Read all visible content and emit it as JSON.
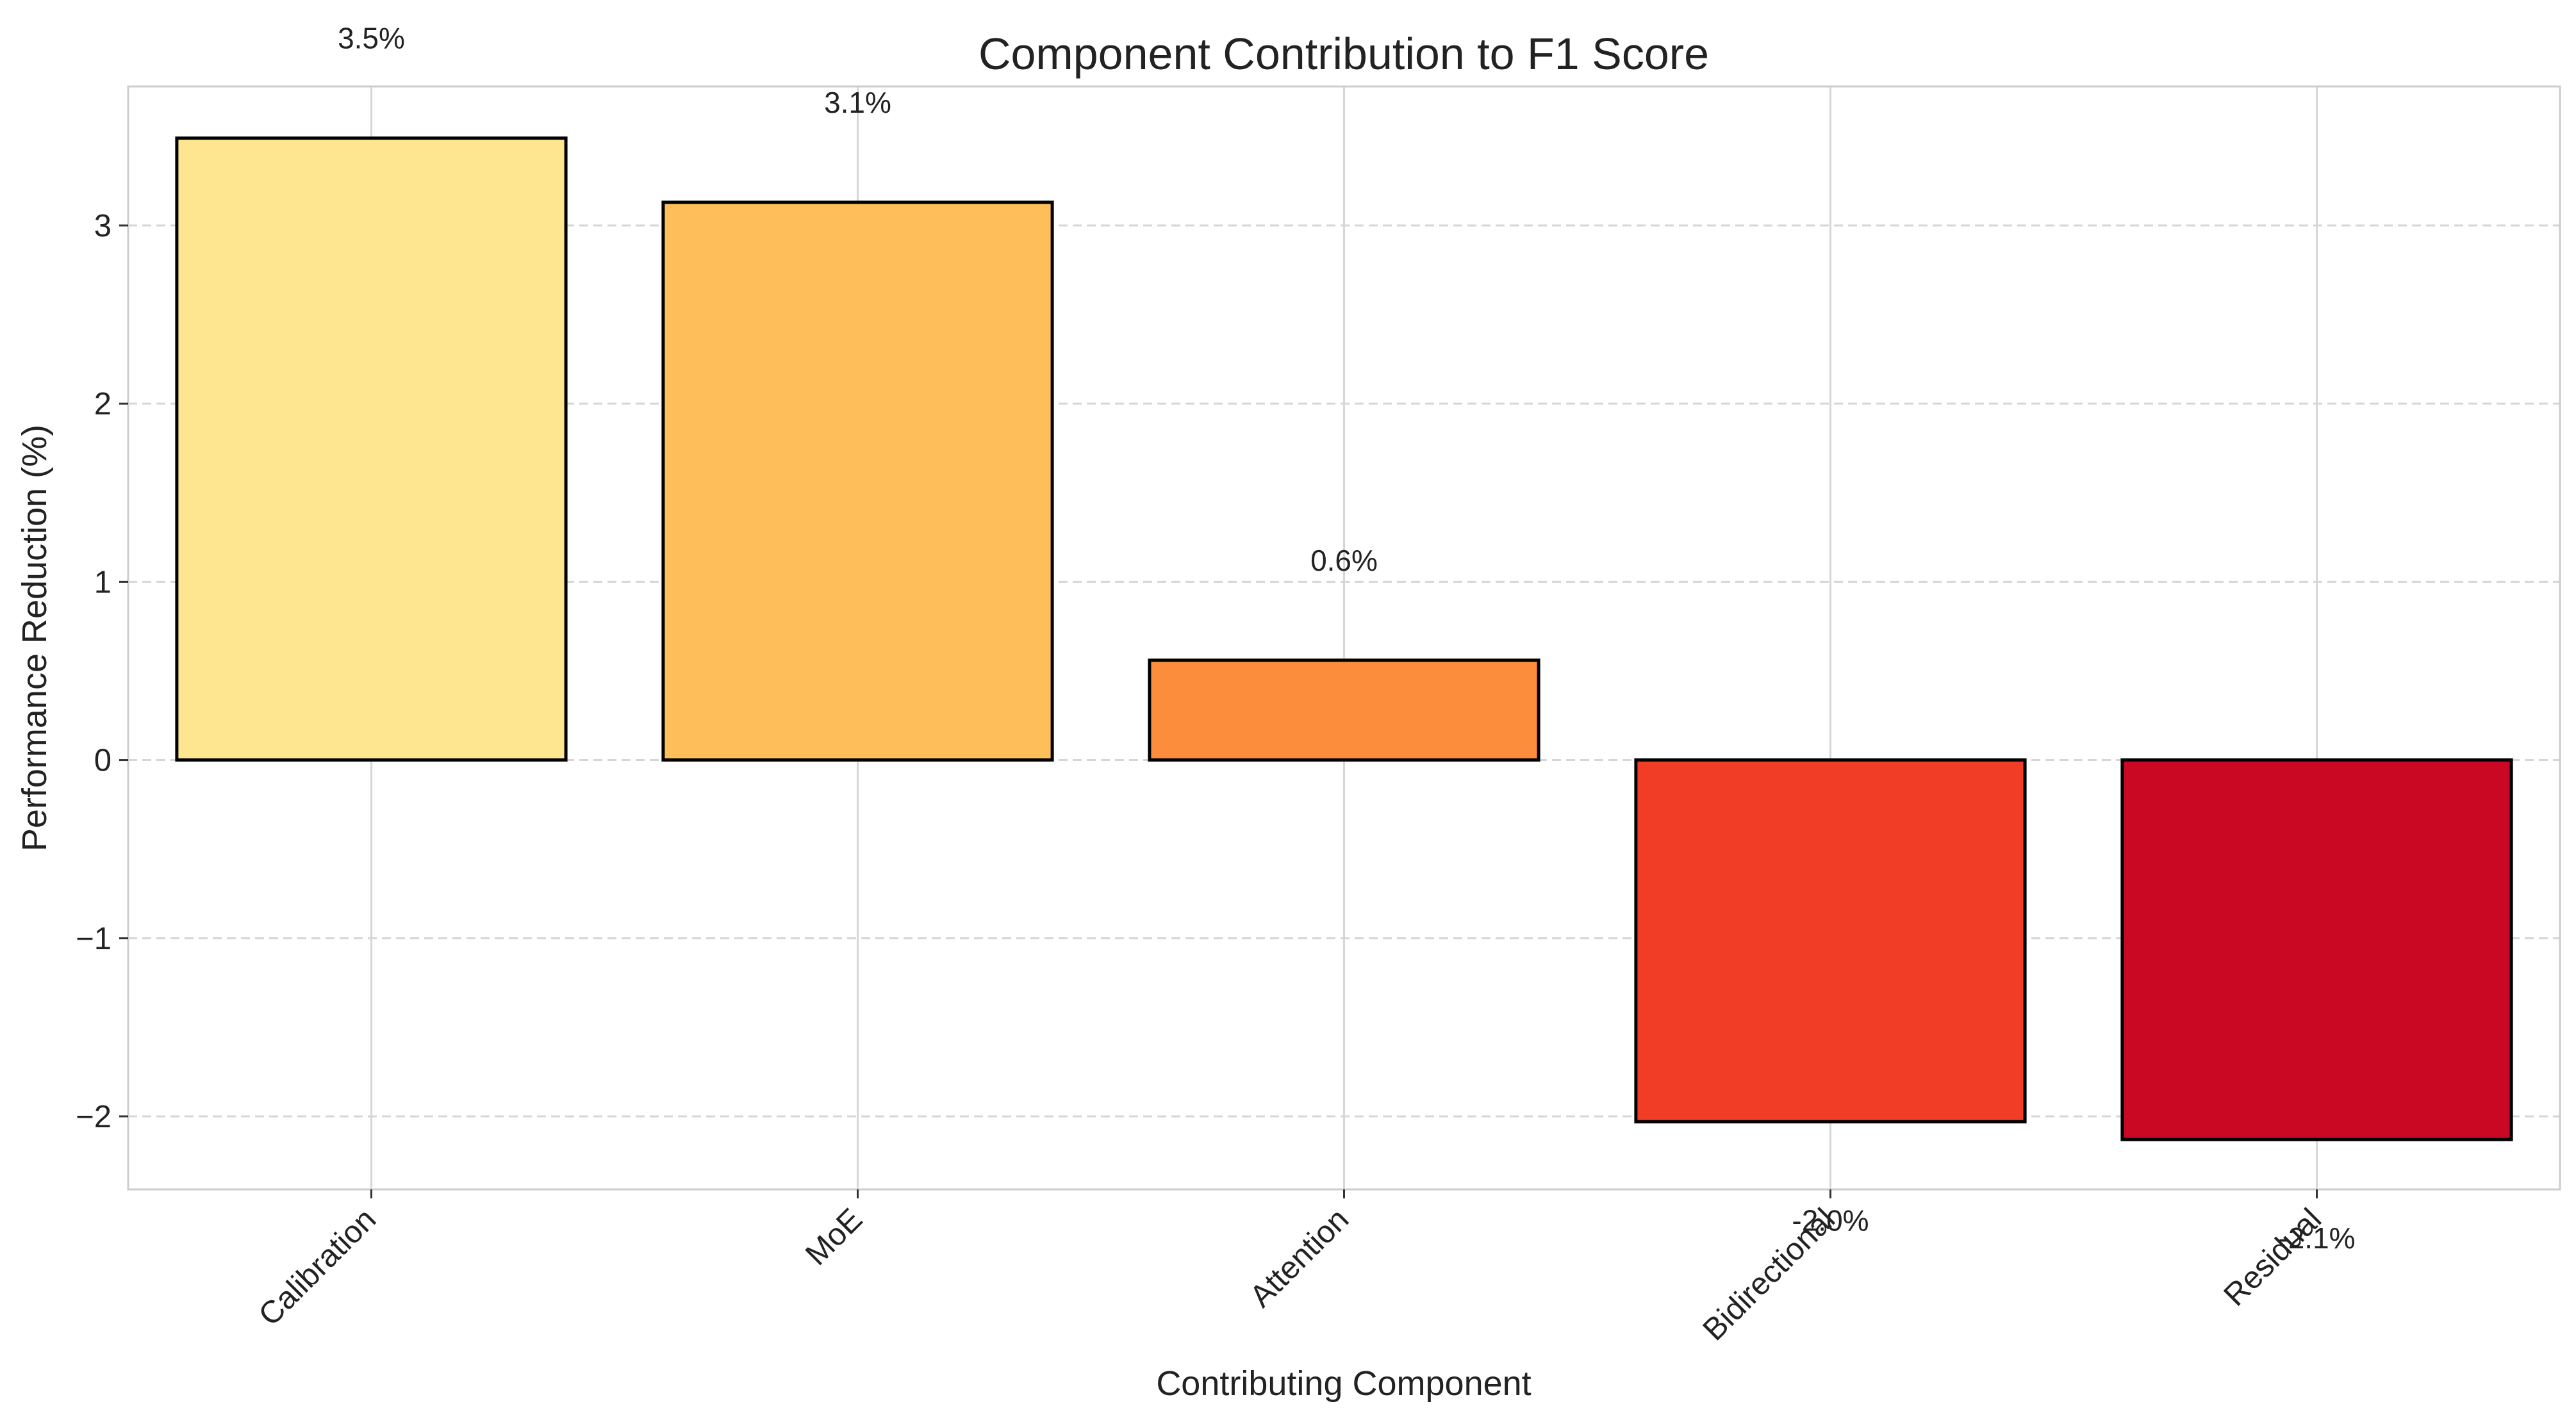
{
  "chart_data": {
    "type": "bar",
    "title": "Component Contribution to F1 Score",
    "xlabel": "Contributing Component",
    "ylabel": "Performance Reduction (%)",
    "categories": [
      "Calibration",
      "MoE",
      "Attention",
      "Bidirectional",
      "Residual"
    ],
    "values": [
      3.49,
      3.13,
      0.56,
      -2.03,
      -2.13
    ],
    "value_labels": [
      "3.5%",
      "3.1%",
      "0.6%",
      "-2.0%",
      "-2.1%"
    ],
    "bar_colors": [
      "#FEE691",
      "#FEBF5B",
      "#FC8D3C",
      "#F23D26",
      "#CA0823"
    ],
    "ylim": [
      -2.41,
      3.78
    ],
    "yticks": [
      -2,
      -1,
      0,
      1,
      2,
      3
    ],
    "ytick_labels": [
      "−2",
      "−1",
      "0",
      "1",
      "2",
      "3"
    ],
    "grid": true,
    "legend": "none"
  }
}
